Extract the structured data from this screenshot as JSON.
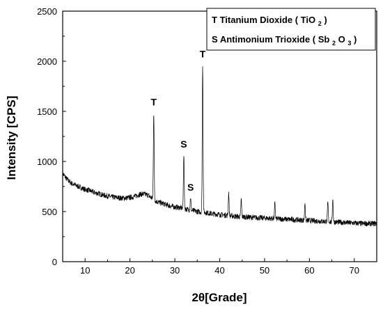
{
  "chart_data": {
    "type": "line",
    "title": "",
    "xlabel": "2θ[Grade]",
    "ylabel": "Intensity [CPS]",
    "xlim": [
      5,
      75
    ],
    "ylim": [
      0,
      2500
    ],
    "xticks": [
      10,
      20,
      30,
      40,
      50,
      60,
      70
    ],
    "yticks": [
      0,
      500,
      1000,
      1500,
      2000,
      2500
    ],
    "grid": false,
    "legend_position": "top-right",
    "legend": [
      {
        "symbol": "T",
        "name": "Titanium Dioxide",
        "formula_prefix": "TiO",
        "formula_sub": "2",
        "formula_middle": "",
        "formula_sub2": ""
      },
      {
        "symbol": "S",
        "name": "Antimonium Trioxide",
        "formula_prefix": "Sb",
        "formula_sub": "2",
        "formula_middle": "O",
        "formula_sub2": "3"
      }
    ],
    "series": [
      {
        "x": [
          5,
          6,
          7,
          8,
          9,
          10,
          11,
          12,
          13,
          14,
          15,
          16,
          17,
          18,
          19,
          20,
          21,
          22,
          23,
          24,
          25,
          25.3,
          25.6,
          26,
          27,
          28,
          29,
          30,
          31,
          32,
          33,
          34,
          35,
          36,
          37,
          38,
          39,
          40,
          42,
          44,
          46,
          48,
          50,
          52,
          54,
          56,
          58,
          60,
          62,
          64,
          66,
          68,
          70,
          72,
          75
        ],
        "y": [
          880,
          820,
          780,
          760,
          740,
          720,
          710,
          690,
          680,
          665,
          655,
          645,
          640,
          635,
          635,
          640,
          650,
          670,
          675,
          665,
          630,
          620,
          610,
          600,
          585,
          570,
          555,
          545,
          540,
          530,
          520,
          510,
          500,
          495,
          490,
          480,
          475,
          470,
          460,
          450,
          445,
          440,
          435,
          430,
          425,
          420,
          415,
          410,
          405,
          400,
          395,
          390,
          385,
          380,
          380
        ]
      }
    ],
    "peaks": [
      {
        "x": 25.3,
        "y": 1490,
        "label": "T"
      },
      {
        "x": 32.0,
        "y": 1070,
        "label": "S"
      },
      {
        "x": 33.5,
        "y": 640,
        "label": "S"
      },
      {
        "x": 36.2,
        "y": 1970,
        "label": "T"
      },
      {
        "x": 42.0,
        "y": 690,
        "label": ""
      },
      {
        "x": 44.8,
        "y": 620,
        "label": ""
      },
      {
        "x": 52.3,
        "y": 580,
        "label": ""
      },
      {
        "x": 59.0,
        "y": 590,
        "label": ""
      },
      {
        "x": 64.1,
        "y": 590,
        "label": ""
      },
      {
        "x": 65.2,
        "y": 630,
        "label": ""
      }
    ]
  }
}
